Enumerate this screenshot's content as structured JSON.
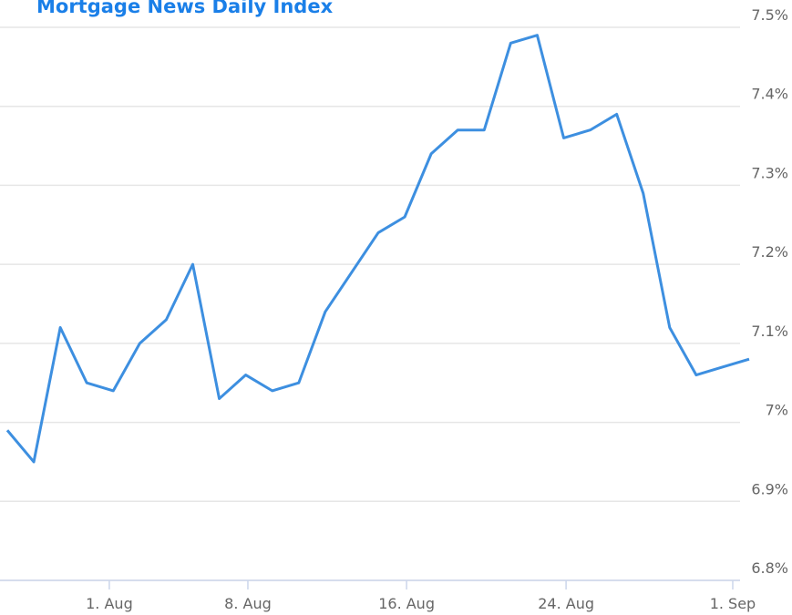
{
  "chart_data": {
    "type": "line",
    "title": "Mortgage News Daily Index",
    "categories": [
      null,
      null,
      null,
      null,
      null,
      null,
      null,
      null,
      null,
      null,
      null,
      null,
      null,
      null,
      null,
      null,
      null,
      null,
      null,
      null,
      null,
      null,
      null,
      null,
      null,
      null,
      null,
      null,
      null
    ],
    "series": [
      {
        "color": "#3d8fe0",
        "values": [
          6.99,
          6.95,
          7.12,
          7.05,
          7.04,
          7.1,
          7.13,
          7.2,
          7.03,
          7.06,
          7.04,
          7.05,
          7.14,
          7.19,
          7.24,
          7.26,
          7.34,
          7.37,
          7.37,
          7.48,
          7.49,
          7.36,
          7.37,
          7.39,
          7.29,
          7.12,
          7.06,
          7.07,
          7.08
        ]
      }
    ],
    "xticks": [
      {
        "value": 3.85,
        "label": "1. Aug"
      },
      {
        "value": 9.08,
        "label": "8. Aug"
      },
      {
        "value": 15.07,
        "label": "16. Aug"
      },
      {
        "value": 21.09,
        "label": "24. Aug"
      },
      {
        "value": 27.38,
        "label": "1. Sep"
      }
    ],
    "ylim": [
      6.8,
      7.5
    ],
    "yticks": [
      {
        "value": 6.8,
        "label": "6.8%"
      },
      {
        "value": 6.9,
        "label": "6.9%"
      },
      {
        "value": 7.0,
        "label": "7%"
      },
      {
        "value": 7.1,
        "label": "7.1%"
      },
      {
        "value": 7.2,
        "label": "7.2%"
      },
      {
        "value": 7.3,
        "label": "7.3%"
      },
      {
        "value": 7.4,
        "label": "7.4%"
      },
      {
        "value": 7.5,
        "label": "7.5%"
      }
    ],
    "grid": true
  }
}
